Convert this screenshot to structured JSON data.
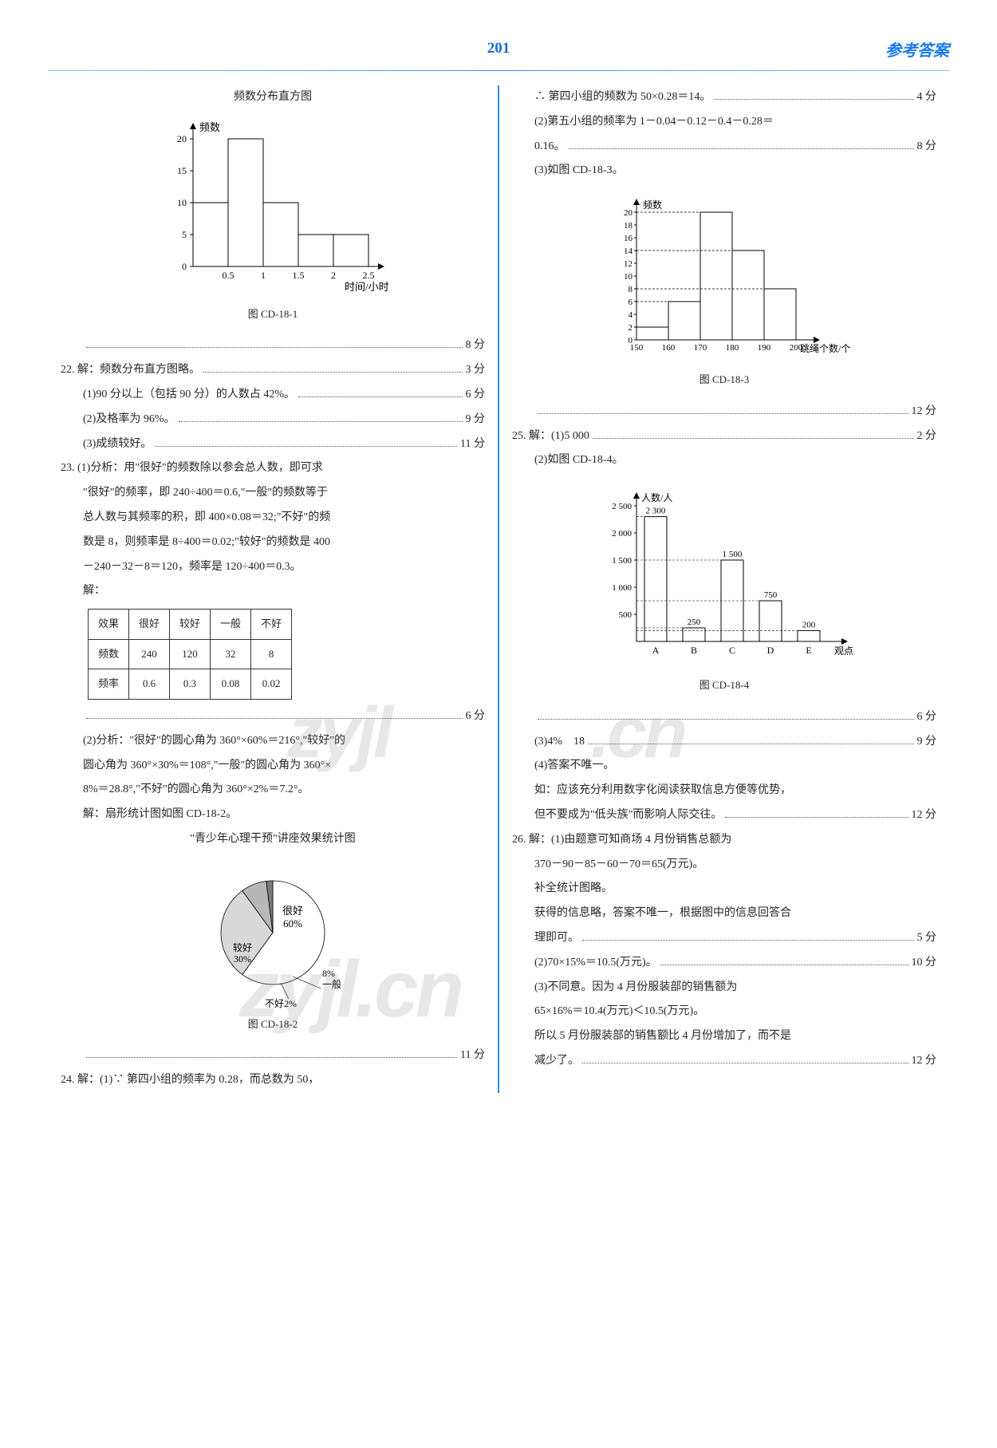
{
  "header": {
    "page_num": "201",
    "title": "参考答案"
  },
  "watermarks": {
    "w1": "zyjl",
    "w2": ".cn",
    "w3": "zyjl.cn"
  },
  "left": {
    "chart1": {
      "type": "bar",
      "title": "频数分布直方图",
      "y_label": "频数",
      "x_label": "时间/小时",
      "y_ticks": [
        0,
        5,
        10,
        15,
        20
      ],
      "x_ticks": [
        0.5,
        1,
        1.5,
        2,
        2.5
      ],
      "bars": [
        {
          "x": 0.5,
          "h": 10
        },
        {
          "x": 1,
          "h": 20
        },
        {
          "x": 1.5,
          "h": 10
        },
        {
          "x": 2,
          "h": 5
        },
        {
          "x": 2.5,
          "h": 5
        }
      ],
      "colors": {
        "axis": "#000",
        "bar_fill": "#fff",
        "bar_stroke": "#000"
      },
      "caption": "图 CD-18-1"
    },
    "l1": {
      "tail": "8 分"
    },
    "q22": {
      "head": "22. 解：频数分布直方图略。",
      "tail": "3 分",
      "a": {
        "text": "(1)90 分以上（包括 90 分）的人数占 42%。",
        "tail": "6 分"
      },
      "b": {
        "text": "(2)及格率为 96%。",
        "tail": "9 分"
      },
      "c": {
        "text": "(3)成绩较好。",
        "tail": "11 分"
      }
    },
    "q23": {
      "p1": "23. (1)分析：用\"很好\"的频数除以参会总人数，即可求",
      "p2": "\"很好\"的频率，即 240÷400＝0.6,\"一般\"的频数等于",
      "p3": "总人数与其频率的积，即 400×0.08＝32;\"不好\"的频",
      "p4": "数是 8，则频率是 8÷400＝0.02;\"较好\"的频数是 400",
      "p5": "－240－32－8＝120，频率是 120÷400＝0.3。",
      "solve": "解：",
      "table": {
        "headers": [
          "效果",
          "很好",
          "较好",
          "一般",
          "不好"
        ],
        "rows": [
          [
            "频数",
            "240",
            "120",
            "32",
            "8"
          ],
          [
            "频率",
            "0.6",
            "0.3",
            "0.08",
            "0.02"
          ]
        ]
      },
      "tail_table": "6 分",
      "p6": "(2)分析：\"很好\"的圆心角为 360°×60%＝216°,\"较好\"的",
      "p7": "圆心角为 360°×30%＝108°,\"一般\"的圆心角为 360°×",
      "p8": "8%＝28.8°,\"不好\"的圆心角为 360°×2%＝7.2°。",
      "p9": "解：扇形统计图如图 CD-18-2。",
      "pie": {
        "type": "pie",
        "title": "\"青少年心理干预\"讲座效果统计图",
        "slices": [
          {
            "label": "很好",
            "pct": 60,
            "text": "很好\n60%"
          },
          {
            "label": "较好",
            "pct": 30,
            "text": "较好\n30%"
          },
          {
            "label": "一般",
            "pct": 8,
            "text": "8%\n一般"
          },
          {
            "label": "不好",
            "pct": 2,
            "text": "不好2%"
          }
        ],
        "colors": [
          "#ffffff",
          "#d8d8d8",
          "#b7b7b7",
          "#7c7c7c"
        ],
        "caption": "图 CD-18-2"
      },
      "tail_pie": "11 分"
    },
    "q24": {
      "text": "24. 解：(1)∵ 第四小组的频率为 0.28，而总数为 50，"
    }
  },
  "right": {
    "r1": {
      "text": "∴ 第四小组的频数为 50×0.28＝14。",
      "tail": "4 分"
    },
    "r2": {
      "text": "(2)第五小组的频率为 1－0.04－0.12－0.4－0.28＝"
    },
    "r3": {
      "text": "0.16。",
      "tail": "8 分"
    },
    "r4": {
      "text": "(3)如图 CD-18-3。"
    },
    "chart3": {
      "type": "bar",
      "y_label": "频数",
      "x_label": "跳绳个数/个",
      "y_ticks": [
        0,
        2,
        4,
        6,
        8,
        10,
        12,
        14,
        16,
        18,
        20
      ],
      "x_ticks": [
        150,
        160,
        170,
        180,
        190,
        200
      ],
      "bars": [
        {
          "x": 150,
          "h": 2
        },
        {
          "x": 160,
          "h": 6
        },
        {
          "x": 170,
          "h": 20
        },
        {
          "x": 180,
          "h": 14
        },
        {
          "x": 190,
          "h": 8
        }
      ],
      "colors": {
        "axis": "#000",
        "bar_fill": "#fff",
        "bar_stroke": "#000",
        "dash": "#000"
      },
      "caption": "图 CD-18-3"
    },
    "tail_c3": "12 分",
    "q25": {
      "a": {
        "text": "25. 解：(1)5 000",
        "tail": "2 分"
      },
      "b": "(2)如图 CD-18-4。",
      "chart4": {
        "type": "bar",
        "y_label": "人数/人",
        "x_label": "观点",
        "y_ticks": [
          500,
          1000,
          1500,
          2000,
          2500
        ],
        "y_tick_labels": [
          "500",
          "1 000",
          "1 500",
          "2 000",
          "2 500"
        ],
        "categories": [
          "A",
          "B",
          "C",
          "D",
          "E"
        ],
        "values": [
          2300,
          250,
          1500,
          750,
          200
        ],
        "value_labels": [
          "2 300",
          "250",
          "1 500",
          "750",
          "200"
        ],
        "colors": {
          "axis": "#000",
          "bar_fill": "#fff",
          "bar_stroke": "#000"
        },
        "caption": "图 CD-18-4"
      },
      "tail_c4": "6 分",
      "c": {
        "text": "(3)4%　18",
        "tail": "9 分"
      },
      "d": "(4)答案不唯一。",
      "e": "如：应该充分利用数字化阅读获取信息方便等优势，",
      "f": {
        "text": "但不要成为\"低头族\"而影响人际交往。",
        "tail": "12 分"
      }
    },
    "q26": {
      "a": "26. 解：(1)由题意可知商场 4 月份销售总额为",
      "b": "370－90－85－60－70＝65(万元)。",
      "c": "补全统计图略。",
      "d": "获得的信息略，答案不唯一，根据图中的信息回答合",
      "e": {
        "text": "理即可。",
        "tail": "5 分"
      },
      "f": {
        "text": "(2)70×15%＝10.5(万元)。",
        "tail": "10 分"
      },
      "g": "(3)不同意。因为 4 月份服装部的销售额为",
      "h": "65×16%＝10.4(万元)＜10.5(万元)。",
      "i": "所以 5 月份服装部的销售额比 4 月份增加了，而不是",
      "j": {
        "text": "减少了。",
        "tail": "12 分"
      }
    }
  }
}
